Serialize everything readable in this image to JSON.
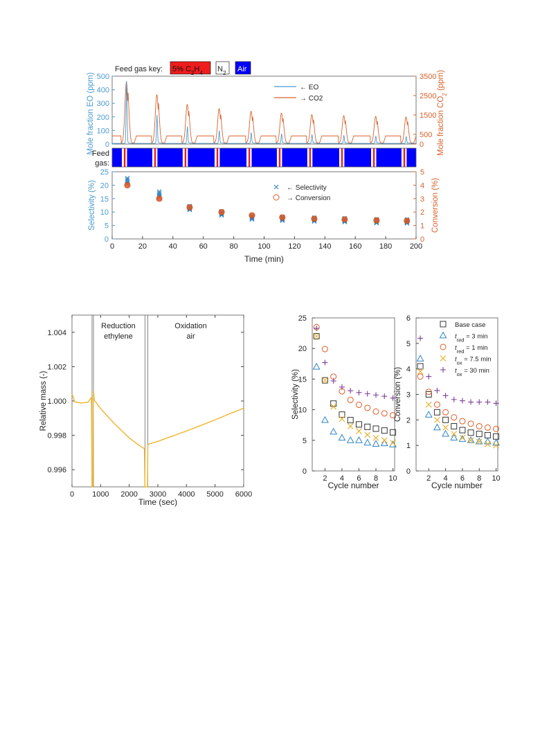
{
  "colors": {
    "eo_blue": "#4a9ad0",
    "co2_orange": "#d9602a",
    "air_blue": "#0000ff",
    "c2h4_red": "#ee1c1c",
    "mass_gold": "#f0b429",
    "sq_black": "#333333",
    "tri_blue": "#2f83c4",
    "circ_orange": "#e05a24",
    "x_yellow": "#e6ac1e",
    "plus_purple": "#7c3e99"
  },
  "chart_data": [
    {
      "type": "line",
      "id": "fig-a-top",
      "feed_key": {
        "label": "Feed gas key:",
        "items": [
          {
            "label": "5% C",
            "sub1": "2",
            "mid": "H",
            "sub2": "4",
            "color": "#ee1c1c"
          },
          {
            "label": "N",
            "sub1": "2",
            "color": "#ffffff"
          },
          {
            "label": "Air",
            "color": "#0000ff"
          }
        ]
      },
      "ylabel_left": "Mole fraction EO (ppm)",
      "ylabel_right": "Mole fraction CO",
      "ylabel_right_sub": "2",
      "ylabel_right_tail": " (ppm)",
      "xlim": [
        0,
        200
      ],
      "ylim_left": [
        0,
        500
      ],
      "ylim_right": [
        0,
        3500
      ],
      "yticks_left": [
        "0",
        "100",
        "200",
        "300",
        "400",
        "500"
      ],
      "yticks_right": [
        "0",
        "500",
        "1500",
        "2500",
        "3500"
      ],
      "legend": [
        {
          "name": "← EO"
        },
        {
          "name": "→ CO2"
        }
      ],
      "cycles": [
        10,
        30,
        50,
        71,
        92,
        112,
        132,
        153,
        174,
        194
      ],
      "eo_peaks": [
        460,
        210,
        125,
        95,
        80,
        72,
        66,
        60,
        55,
        52
      ],
      "co2_peaks": [
        3200,
        2550,
        2050,
        1830,
        1700,
        1600,
        1520,
        1470,
        1430,
        1400
      ],
      "co2_baseline": 420
    },
    {
      "type": "heatmap",
      "id": "fig-a-feed",
      "ylabel": "Feed gas:",
      "segments": "air with short N2 / C2H4 / N2 pulses at each cycle"
    },
    {
      "type": "scatter",
      "id": "fig-a-bottom",
      "xlabel": "Time (min)",
      "ylabel_left": "Selectivity (%)",
      "ylabel_right": "Conversion (%)",
      "xlim": [
        0,
        200
      ],
      "ylim_left": [
        0,
        25
      ],
      "ylim_right": [
        0,
        5
      ],
      "xticks": [
        "0",
        "20",
        "40",
        "60",
        "80",
        "100",
        "120",
        "140",
        "160",
        "180",
        "200"
      ],
      "yticks_left": [
        "0",
        "5",
        "10",
        "15",
        "20",
        "25"
      ],
      "yticks_right": [
        "0",
        "1",
        "2",
        "3",
        "4",
        "5"
      ],
      "legend": [
        {
          "name": "← Selectivity"
        },
        {
          "name": "→ Conversion"
        }
      ],
      "x": [
        10,
        31,
        51,
        72,
        92,
        112,
        133,
        153,
        174,
        194
      ],
      "selectivity": [
        21.5,
        16.5,
        11.5,
        9.5,
        8.0,
        7.5,
        7.2,
        7.0,
        6.6,
        6.5
      ],
      "conversion": [
        4.0,
        3.0,
        2.35,
        2.0,
        1.75,
        1.6,
        1.5,
        1.45,
        1.38,
        1.35
      ]
    },
    {
      "type": "line",
      "id": "fig-b",
      "xlabel": "Time (sec)",
      "ylabel": "Relative mass (-)",
      "xlim": [
        0,
        6000
      ],
      "ylim": [
        0.995,
        1.005
      ],
      "xticks": [
        "0",
        "1000",
        "2000",
        "3000",
        "4000",
        "5000",
        "6000"
      ],
      "yticks": [
        "0.996",
        "0.998",
        "1.000",
        "1.002",
        "1.004"
      ],
      "annotations": [
        {
          "line1": "Reduction",
          "line2": "ethylene",
          "x": 1620
        },
        {
          "line1": "Oxidation",
          "line2": "air",
          "x": 4150
        }
      ],
      "vlines": [
        700,
        750,
        2550,
        2650
      ],
      "points": [
        [
          0,
          1.0004
        ],
        [
          100,
          0.99995
        ],
        [
          300,
          0.99988
        ],
        [
          550,
          0.99992
        ],
        [
          680,
          1.0002
        ],
        [
          700,
          0.9948
        ],
        [
          730,
          0.9948
        ],
        [
          750,
          1.0006
        ],
        [
          780,
          1.00005
        ],
        [
          1000,
          0.99955
        ],
        [
          1500,
          0.99865
        ],
        [
          2000,
          0.99785
        ],
        [
          2400,
          0.99735
        ],
        [
          2530,
          0.99722
        ],
        [
          2550,
          0.9948
        ],
        [
          2640,
          0.9948
        ],
        [
          2650,
          0.99745
        ],
        [
          2700,
          0.9975
        ],
        [
          3000,
          0.99765
        ],
        [
          3500,
          0.99795
        ],
        [
          4000,
          0.99825
        ],
        [
          4500,
          0.99857
        ],
        [
          5000,
          0.9989
        ],
        [
          5500,
          0.99925
        ],
        [
          6000,
          0.99958
        ]
      ]
    },
    {
      "type": "scatter",
      "id": "fig-c-left",
      "xlabel": "Cycle number",
      "ylabel": "Selectivity (%)",
      "xlim": [
        0.5,
        10.2
      ],
      "ylim": [
        0,
        25
      ],
      "xticks": [
        "2",
        "4",
        "6",
        "8",
        "10"
      ],
      "yticks": [
        "0",
        "5",
        "10",
        "15",
        "20",
        "25"
      ],
      "series": [
        {
          "name": "Base case",
          "marker": "square",
          "values": [
            22.0,
            14.8,
            11.0,
            9.2,
            8.3,
            7.6,
            7.2,
            6.9,
            6.6,
            6.3
          ]
        },
        {
          "name": "t_red = 3 min",
          "marker": "triangle",
          "values": [
            17.0,
            8.3,
            6.4,
            5.4,
            5.0,
            5.0,
            4.6,
            4.4,
            4.5,
            4.3
          ]
        },
        {
          "name": "t_red = 1 min",
          "marker": "circle",
          "values": [
            23.5,
            19.9,
            15.4,
            13.0,
            11.6,
            10.8,
            10.3,
            9.7,
            9.4,
            9.1
          ]
        },
        {
          "name": "t_ox = 7.5 min",
          "marker": "x",
          "values": [
            22.0,
            14.8,
            10.5,
            8.5,
            7.3,
            6.5,
            5.9,
            5.4,
            5.0,
            4.6
          ]
        },
        {
          "name": "t_ox = 30 min",
          "marker": "plus",
          "values": [
            23.3,
            17.7,
            14.7,
            13.7,
            13.1,
            12.8,
            12.6,
            12.4,
            12.2,
            11.9
          ]
        }
      ]
    },
    {
      "type": "scatter",
      "id": "fig-c-right",
      "xlabel": "Cycle number",
      "ylabel": "Conversion (%)",
      "xlim": [
        0.5,
        10.2
      ],
      "ylim": [
        0,
        6
      ],
      "xticks": [
        "2",
        "4",
        "6",
        "8",
        "10"
      ],
      "yticks": [
        "0",
        "1",
        "2",
        "3",
        "4",
        "5",
        "6"
      ],
      "legend": [
        {
          "name": "Base case",
          "marker": "square"
        },
        {
          "pre": "t",
          "sub": "red",
          "post": " = 3 min",
          "marker": "triangle"
        },
        {
          "pre": "t",
          "sub": "red",
          "post": " = 1 min",
          "marker": "circle"
        },
        {
          "pre": "t",
          "sub": "ox",
          "post": " = 7.5 min",
          "marker": "x"
        },
        {
          "pre": "t",
          "sub": "ox",
          "post": " = 30 min",
          "marker": "plus"
        }
      ],
      "series": [
        {
          "name": "Base case",
          "marker": "square",
          "values": [
            4.1,
            3.0,
            2.3,
            2.0,
            1.75,
            1.6,
            1.5,
            1.45,
            1.4,
            1.35
          ]
        },
        {
          "name": "t_red = 3 min",
          "marker": "triangle",
          "values": [
            4.4,
            2.2,
            1.7,
            1.45,
            1.3,
            1.25,
            1.2,
            1.15,
            1.15,
            1.1
          ]
        },
        {
          "name": "t_red = 1 min",
          "marker": "circle",
          "values": [
            3.7,
            3.1,
            2.6,
            2.3,
            2.1,
            1.95,
            1.85,
            1.75,
            1.7,
            1.65
          ]
        },
        {
          "name": "t_ox = 7.5 min",
          "marker": "x",
          "values": [
            3.9,
            2.6,
            2.0,
            1.7,
            1.45,
            1.3,
            1.2,
            1.15,
            1.05,
            1.0
          ]
        },
        {
          "name": "t_ox = 30 min",
          "marker": "plus",
          "values": [
            5.2,
            3.7,
            3.15,
            2.95,
            2.8,
            2.75,
            2.7,
            2.7,
            2.7,
            2.65
          ]
        }
      ]
    }
  ]
}
